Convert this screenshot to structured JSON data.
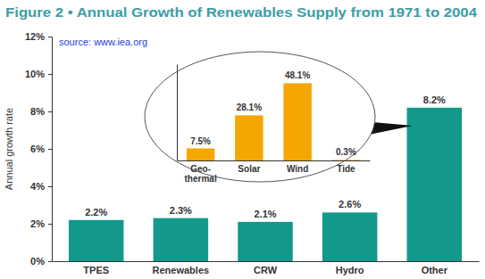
{
  "chart_data": [
    {
      "type": "bar",
      "title": "Figure 2 • Annual Growth of Renewables Supply from 1971 to 2004",
      "annotation": "source: www.iea.org",
      "y_label": "Annual growth rate",
      "categories": [
        "TPES",
        "Renewables",
        "CRW",
        "Hydro",
        "Other"
      ],
      "values": [
        2.2,
        2.3,
        2.1,
        2.6,
        8.2
      ],
      "value_labels": [
        "2.2%",
        "2.3%",
        "2.1%",
        "2.6%",
        "8.2%"
      ],
      "color": "#12998c",
      "ylim": [
        0,
        12
      ],
      "yticks": [
        {
          "value": 0,
          "label": "0%"
        },
        {
          "value": 2,
          "label": "2%"
        },
        {
          "value": 4,
          "label": "4%"
        },
        {
          "value": 6,
          "label": "6%"
        },
        {
          "value": 8,
          "label": "8%"
        },
        {
          "value": 10,
          "label": "10%"
        },
        {
          "value": 12,
          "label": "12%"
        }
      ],
      "grid": false,
      "data_labels": true
    },
    {
      "type": "bar",
      "categories": [
        "Geo-thermal",
        "Solar",
        "Wind",
        "Tide"
      ],
      "values": [
        7.5,
        28.1,
        48.1,
        0.3
      ],
      "value_labels": [
        "7.5%",
        "28.1%",
        "48.1%",
        "0.3%"
      ],
      "color": "#f4a700",
      "ylim": [
        0,
        60
      ],
      "grid": false,
      "data_labels": true,
      "tick_labels": "x"
    }
  ]
}
